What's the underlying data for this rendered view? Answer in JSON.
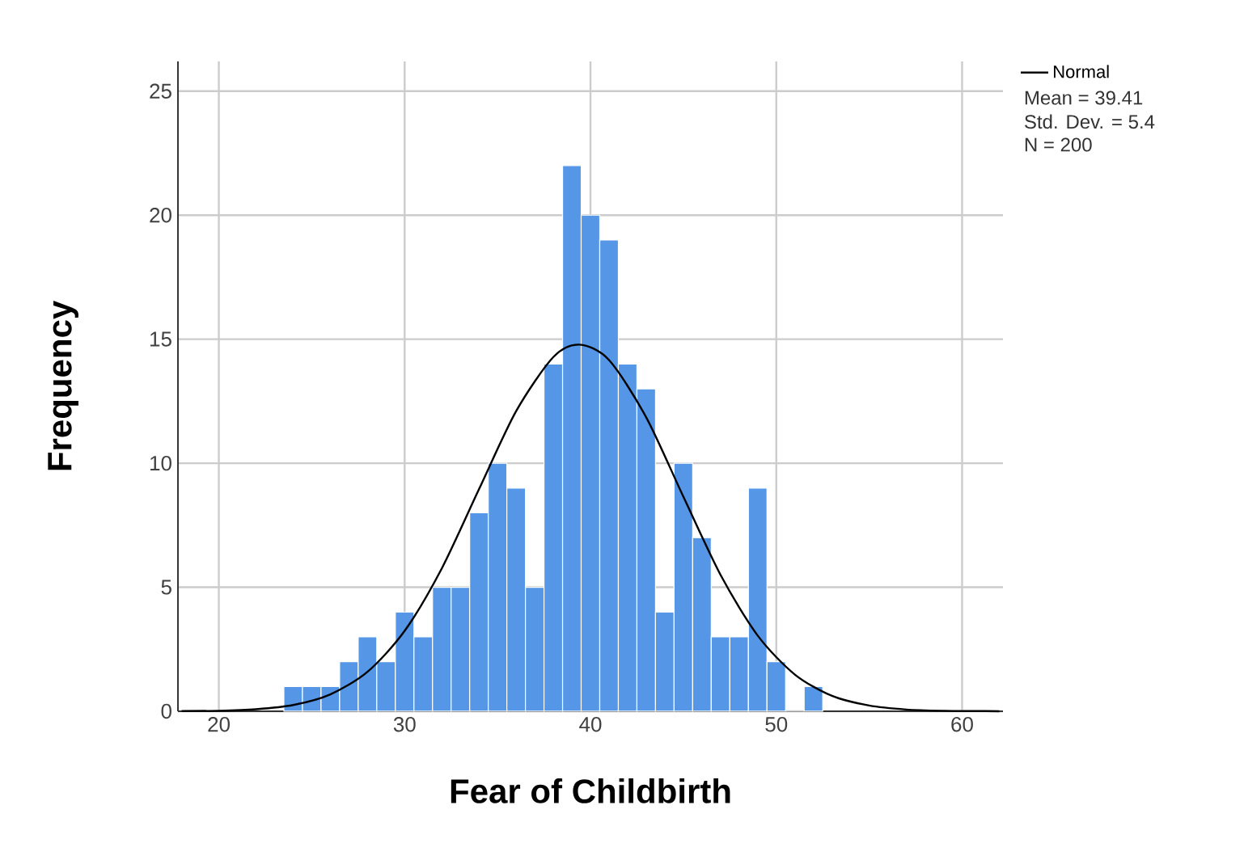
{
  "chart_data": {
    "type": "histogram",
    "xlabel": "Fear of Childbirth",
    "ylabel": "Frequency",
    "series": [
      {
        "color": "#5596e6",
        "bins": [
          23.5,
          24.5,
          25.5,
          26.5,
          27.5,
          28.5,
          29.5,
          30.5,
          31.5,
          32.5,
          33.5,
          34.5,
          35.5,
          36.5,
          37.5,
          38.5,
          39.5,
          40.5,
          41.5,
          42.5,
          43.5,
          44.5,
          45.5,
          46.5,
          47.5,
          48.5,
          49.5,
          50.5,
          51.5,
          52.5
        ],
        "values": [
          1,
          1,
          1,
          2,
          3,
          2,
          4,
          3,
          5,
          5,
          8,
          10,
          9,
          5,
          14,
          22,
          20,
          19,
          14,
          13,
          4,
          10,
          7,
          3,
          3,
          9,
          2,
          0,
          1
        ]
      },
      {
        "type": "line",
        "name": "Normal",
        "color": "#000000",
        "x": [
          18,
          20,
          22,
          24,
          26,
          28,
          30,
          32,
          34,
          36,
          38,
          39.41,
          41,
          43,
          45,
          47,
          49,
          51,
          53,
          55,
          57,
          59,
          61,
          62
        ],
        "values": [
          0.01,
          0.02,
          0.08,
          0.25,
          0.68,
          1.59,
          3.24,
          5.76,
          8.95,
          12.1,
          14.28,
          14.78,
          14.16,
          11.85,
          8.65,
          5.5,
          3.05,
          1.48,
          0.62,
          0.23,
          0.07,
          0.02,
          0.01,
          0
        ]
      }
    ],
    "xlim": [
      17.8,
      62.2
    ],
    "ylim": [
      0,
      26.2
    ],
    "xticks": [
      20,
      30,
      40,
      50,
      60
    ],
    "yticks": [
      0,
      5,
      10,
      15,
      20,
      25
    ],
    "grid": true,
    "legend": "top right",
    "annotations": [
      "Mean = 39.41",
      "Std. Dev. = 5.4",
      "N = 200"
    ]
  }
}
